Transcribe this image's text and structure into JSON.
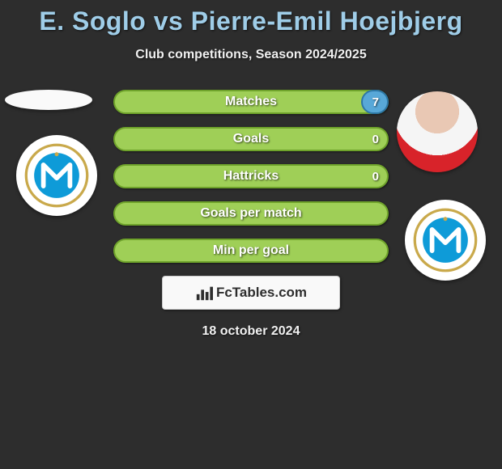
{
  "header": {
    "title": "E. Soglo vs Pierre-Emil Hoejbjerg",
    "title_color": "#9fcde8",
    "subtitle": "Club competitions, Season 2024/2025"
  },
  "players": {
    "left": {
      "name": "E. Soglo",
      "club_crest": "marseille"
    },
    "right": {
      "name": "Pierre-Emil Hoejbjerg",
      "club_crest": "marseille"
    }
  },
  "bars": {
    "track_width": 340,
    "track_height": 30,
    "border_radius": 15,
    "items": [
      {
        "label": "Matches",
        "value": "7",
        "fill_pct": 10,
        "bg_fill": "#9fcf57",
        "bg_border": "#6fa32b",
        "bar_fill": "#58a8d8",
        "bar_border": "#2d76a5"
      },
      {
        "label": "Goals",
        "value": "0",
        "fill_pct": 0,
        "bg_fill": "#9fcf57",
        "bg_border": "#6fa32b",
        "bar_fill": "#58a8d8",
        "bar_border": "#2d76a5"
      },
      {
        "label": "Hattricks",
        "value": "0",
        "fill_pct": 0,
        "bg_fill": "#9fcf57",
        "bg_border": "#6fa32b",
        "bar_fill": "#58a8d8",
        "bar_border": "#2d76a5"
      },
      {
        "label": "Goals per match",
        "value": "",
        "fill_pct": 100,
        "bg_fill": "#9fcf57",
        "bg_border": "#6fa32b",
        "bar_fill": "#9fcf57",
        "bar_border": "#6fa32b"
      },
      {
        "label": "Min per goal",
        "value": "",
        "fill_pct": 100,
        "bg_fill": "#9fcf57",
        "bg_border": "#6fa32b",
        "bar_fill": "#9fcf57",
        "bar_border": "#6fa32b"
      }
    ]
  },
  "watermark": {
    "text": "FcTables.com"
  },
  "date": "18 october 2024",
  "crest": {
    "ring_color": "#c9a94b",
    "inner_color": "#0e9bd8",
    "letter": "M"
  }
}
